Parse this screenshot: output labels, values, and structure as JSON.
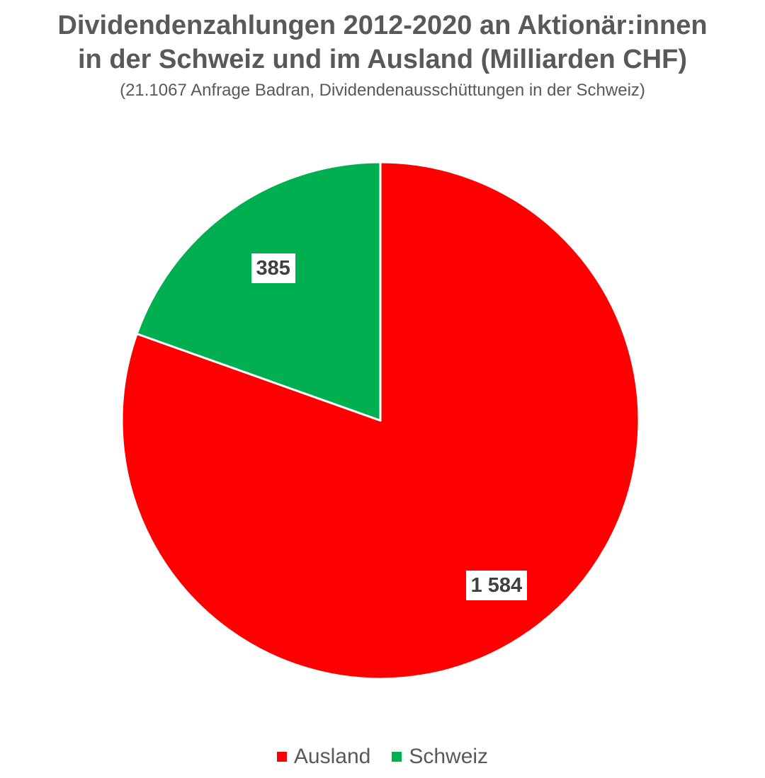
{
  "title": {
    "line1": "Dividendenzahlungen 2012-2020 an Aktionär:innen",
    "line2": "in der Schweiz und im Ausland (Milliarden CHF)"
  },
  "subtitle": "(21.1067 Anfrage Badran, Dividendenausschüttungen in der Schweiz)",
  "chart_data": {
    "type": "pie",
    "title": "Dividendenzahlungen 2012-2020 an Aktionär:innen in der Schweiz und im Ausland (Milliarden CHF)",
    "subtitle": "(21.1067 Anfrage Badran, Dividendenausschüttungen in der Schweiz)",
    "legend_position": "bottom",
    "slices": [
      {
        "name": "Ausland",
        "value": 1584,
        "label": "1 584",
        "color": "#ff0000"
      },
      {
        "name": "Schweiz",
        "value": 385,
        "label": "385",
        "color": "#00b050"
      }
    ]
  }
}
